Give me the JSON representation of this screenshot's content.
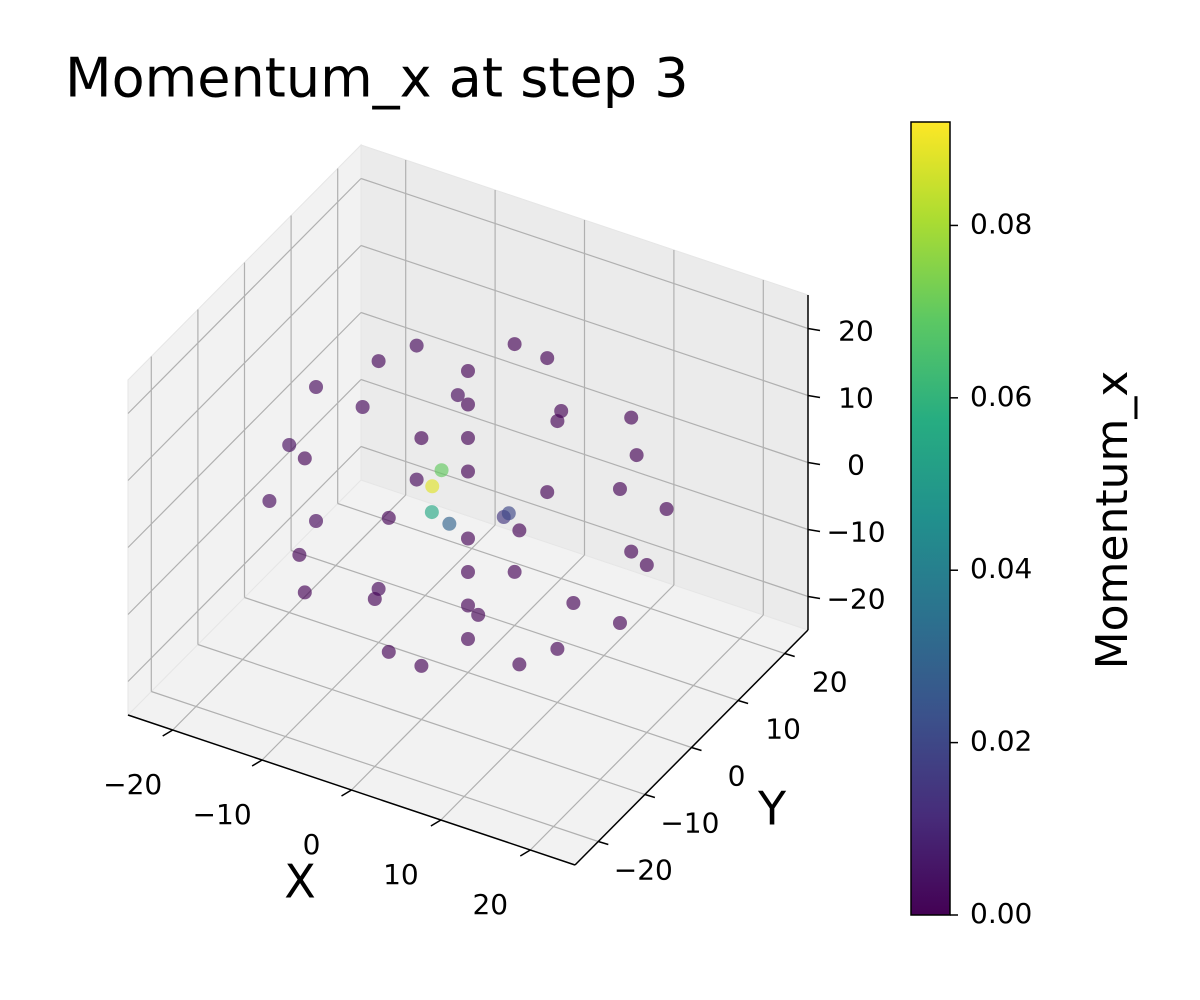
{
  "chart_data": {
    "type": "scatter3d",
    "title": "Momentum_x at step 3",
    "xlabel": "X",
    "ylabel": "Y",
    "colorbar_label": "Momentum_x",
    "colormap": "viridis",
    "xlim": [
      -25,
      25
    ],
    "ylim": [
      -25,
      25
    ],
    "zlim": [
      -25,
      25
    ],
    "xticks": [
      {
        "value": -20,
        "label": "−20"
      },
      {
        "value": -10,
        "label": "−10"
      },
      0,
      10,
      20
    ],
    "yticks": [
      {
        "value": -20,
        "label": "−20"
      },
      {
        "value": -10,
        "label": "−10"
      },
      0,
      10,
      20
    ],
    "zticks": [
      {
        "value": -20,
        "label": "−20"
      },
      {
        "value": -10,
        "label": "−10"
      },
      0,
      10,
      20
    ],
    "clim": [
      0,
      0.092
    ],
    "cticks": [
      {
        "value": 0,
        "label": "0.00"
      },
      {
        "value": 0.02,
        "label": "0.02"
      },
      {
        "value": 0.04,
        "label": "0.04"
      },
      {
        "value": 0.06,
        "label": "0.06"
      },
      {
        "value": 0.08,
        "label": "0.08"
      }
    ],
    "grid": true,
    "x": [
      20,
      17,
      10,
      0,
      -10,
      -17,
      -20,
      -17,
      -10,
      0,
      10,
      17,
      17,
      12,
      0,
      -12,
      -17,
      -12,
      0,
      12,
      17,
      12,
      0,
      -12,
      -17,
      -12,
      0,
      12,
      10,
      0,
      -10,
      0,
      10,
      0,
      -10,
      0,
      0,
      0,
      0,
      0,
      0,
      0,
      0,
      0,
      -4,
      -4,
      -3,
      0,
      4,
      3
    ],
    "y": [
      0,
      10,
      17,
      20,
      17,
      10,
      0,
      -10,
      -17,
      -20,
      -17,
      -10,
      0,
      12,
      17,
      12,
      0,
      -12,
      -17,
      -12,
      0,
      12,
      17,
      12,
      0,
      -12,
      -17,
      -12,
      0,
      10,
      0,
      -10,
      0,
      10,
      0,
      -10,
      0,
      0,
      0,
      0,
      0,
      0,
      0,
      0,
      0,
      2,
      -2,
      -4,
      0,
      3
    ],
    "z": [
      0,
      0,
      0,
      0,
      0,
      0,
      0,
      0,
      0,
      0,
      0,
      0,
      10,
      10,
      10,
      10,
      10,
      10,
      10,
      10,
      -10,
      -10,
      -10,
      -10,
      -10,
      -10,
      -10,
      -10,
      17,
      17,
      17,
      17,
      -17,
      -17,
      -17,
      -17,
      20,
      -20,
      5,
      -5,
      10,
      -10,
      15,
      -15,
      1,
      2,
      -1,
      0,
      0,
      -2
    ],
    "values": [
      0,
      0,
      0,
      0,
      0.002,
      0.002,
      0.003,
      0.002,
      0,
      0,
      0,
      0,
      0,
      0,
      0,
      0.002,
      0.002,
      0,
      0,
      0,
      0,
      0,
      0,
      0.002,
      0.002,
      0,
      0,
      0,
      0,
      0,
      0.001,
      0,
      0,
      0,
      0.001,
      0,
      0,
      0,
      0,
      0,
      0,
      0,
      0,
      0,
      0.088,
      0.07,
      0.055,
      0.03,
      0.015,
      0.02
    ]
  }
}
